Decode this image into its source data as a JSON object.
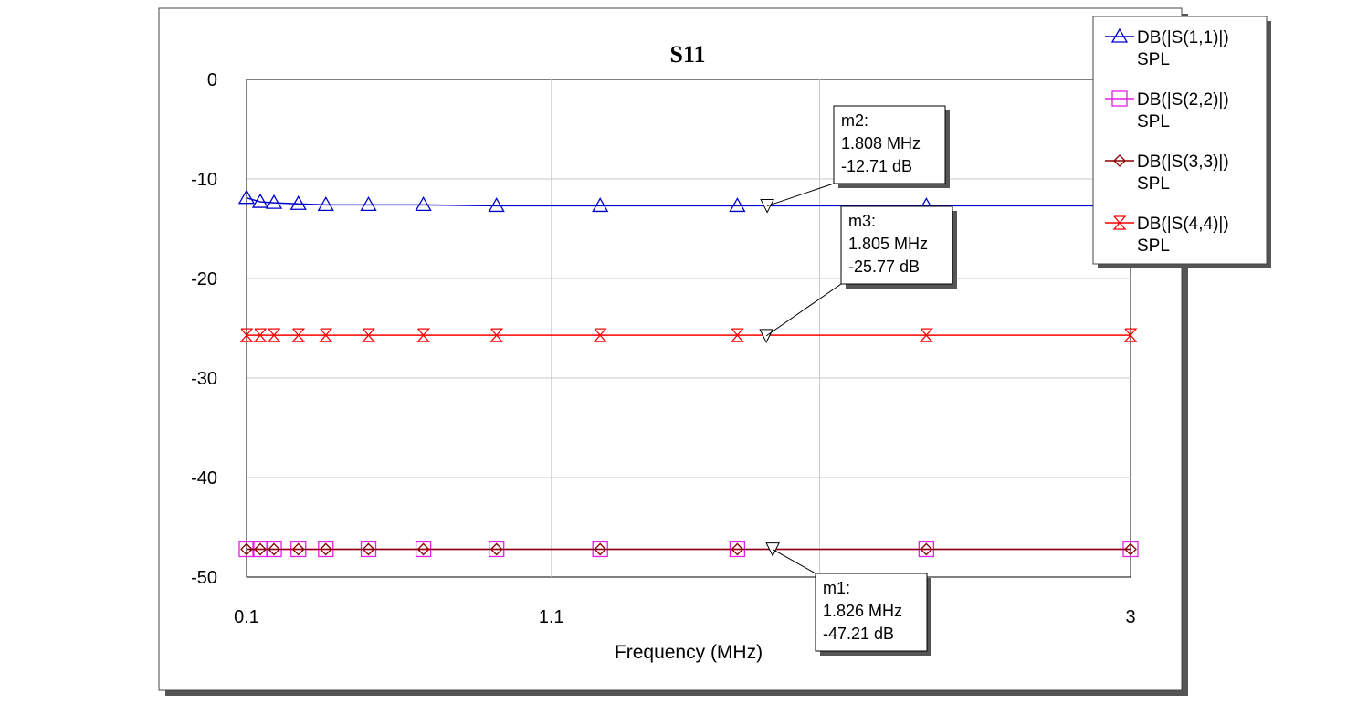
{
  "chart_data": {
    "type": "line",
    "title": "S11",
    "xlabel": "Frequency (MHz)",
    "ylabel": "",
    "xlim": [
      0.1,
      3
    ],
    "ylim": [
      -50,
      0
    ],
    "x_ticks": [
      "0.1",
      "1.1",
      "3"
    ],
    "x_tick_values": [
      0.1,
      1.1,
      3
    ],
    "y_ticks": [
      0,
      -10,
      -20,
      -30,
      -40,
      -50
    ],
    "grid": true,
    "legend_position": "top-right",
    "x": [
      0.1,
      0.145,
      0.19,
      0.27,
      0.36,
      0.5,
      0.68,
      0.92,
      1.26,
      1.71,
      2.33,
      3.0
    ],
    "series": [
      {
        "name": "DB(|S(1,1)|)",
        "name_line2": "SPL",
        "color": "#0000cc",
        "marker": "triangle",
        "values": [
          -11.9,
          -12.3,
          -12.4,
          -12.5,
          -12.6,
          -12.6,
          -12.6,
          -12.7,
          -12.7,
          -12.7,
          -12.7,
          -12.7
        ]
      },
      {
        "name": "DB(|S(2,2)|)",
        "name_line2": "SPL",
        "color": "#e61ee6",
        "marker": "square",
        "values": [
          -47.2,
          -47.2,
          -47.2,
          -47.2,
          -47.2,
          -47.2,
          -47.2,
          -47.2,
          -47.2,
          -47.2,
          -47.2,
          -47.2
        ]
      },
      {
        "name": "DB(|S(3,3)|)",
        "name_line2": "SPL",
        "color": "#8b0000",
        "marker": "diamond",
        "values": [
          -47.2,
          -47.2,
          -47.2,
          -47.2,
          -47.2,
          -47.2,
          -47.2,
          -47.2,
          -47.2,
          -47.2,
          -47.2,
          -47.2
        ]
      },
      {
        "name": "DB(|S(4,4)|)",
        "name_line2": "SPL",
        "color": "#ff0000",
        "marker": "bowtie",
        "values": [
          -25.7,
          -25.7,
          -25.7,
          -25.7,
          -25.7,
          -25.7,
          -25.7,
          -25.7,
          -25.7,
          -25.7,
          -25.7,
          -25.7
        ]
      }
    ],
    "markers": [
      {
        "name": "m2:",
        "freq": "1.808 MHz",
        "val": "-12.71 dB",
        "x": 1.808,
        "y": -12.71
      },
      {
        "name": "m3:",
        "freq": "1.805 MHz",
        "val": "-25.77 dB",
        "x": 1.805,
        "y": -25.77
      },
      {
        "name": "m1:",
        "freq": "1.826 MHz",
        "val": "-47.21 dB",
        "x": 1.826,
        "y": -47.21
      }
    ]
  }
}
